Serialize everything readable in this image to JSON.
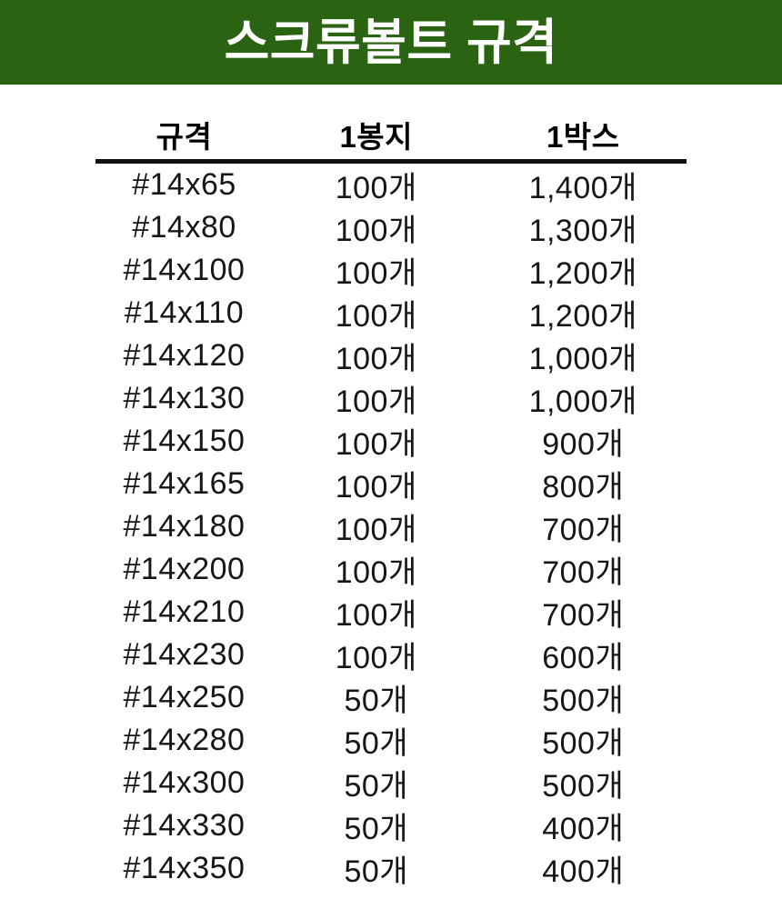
{
  "title": "스크류볼트 규격",
  "theme": {
    "banner_bg": "#2a6413",
    "banner_text": "#ffffff",
    "divider": "#111111",
    "body_text": "#161616"
  },
  "table": {
    "columns": [
      "규격",
      "1봉지",
      "1박스"
    ],
    "rows": [
      [
        "#14x65",
        "100개",
        "1,400개"
      ],
      [
        "#14x80",
        "100개",
        "1,300개"
      ],
      [
        "#14x100",
        "100개",
        "1,200개"
      ],
      [
        "#14x110",
        "100개",
        "1,200개"
      ],
      [
        "#14x120",
        "100개",
        "1,000개"
      ],
      [
        "#14x130",
        "100개",
        "1,000개"
      ],
      [
        "#14x150",
        "100개",
        "900개"
      ],
      [
        "#14x165",
        "100개",
        "800개"
      ],
      [
        "#14x180",
        "100개",
        "700개"
      ],
      [
        "#14x200",
        "100개",
        "700개"
      ],
      [
        "#14x210",
        "100개",
        "700개"
      ],
      [
        "#14x230",
        "100개",
        "600개"
      ],
      [
        "#14x250",
        "50개",
        "500개"
      ],
      [
        "#14x280",
        "50개",
        "500개"
      ],
      [
        "#14x300",
        "50개",
        "500개"
      ],
      [
        "#14x330",
        "50개",
        "400개"
      ],
      [
        "#14x350",
        "50개",
        "400개"
      ]
    ]
  }
}
